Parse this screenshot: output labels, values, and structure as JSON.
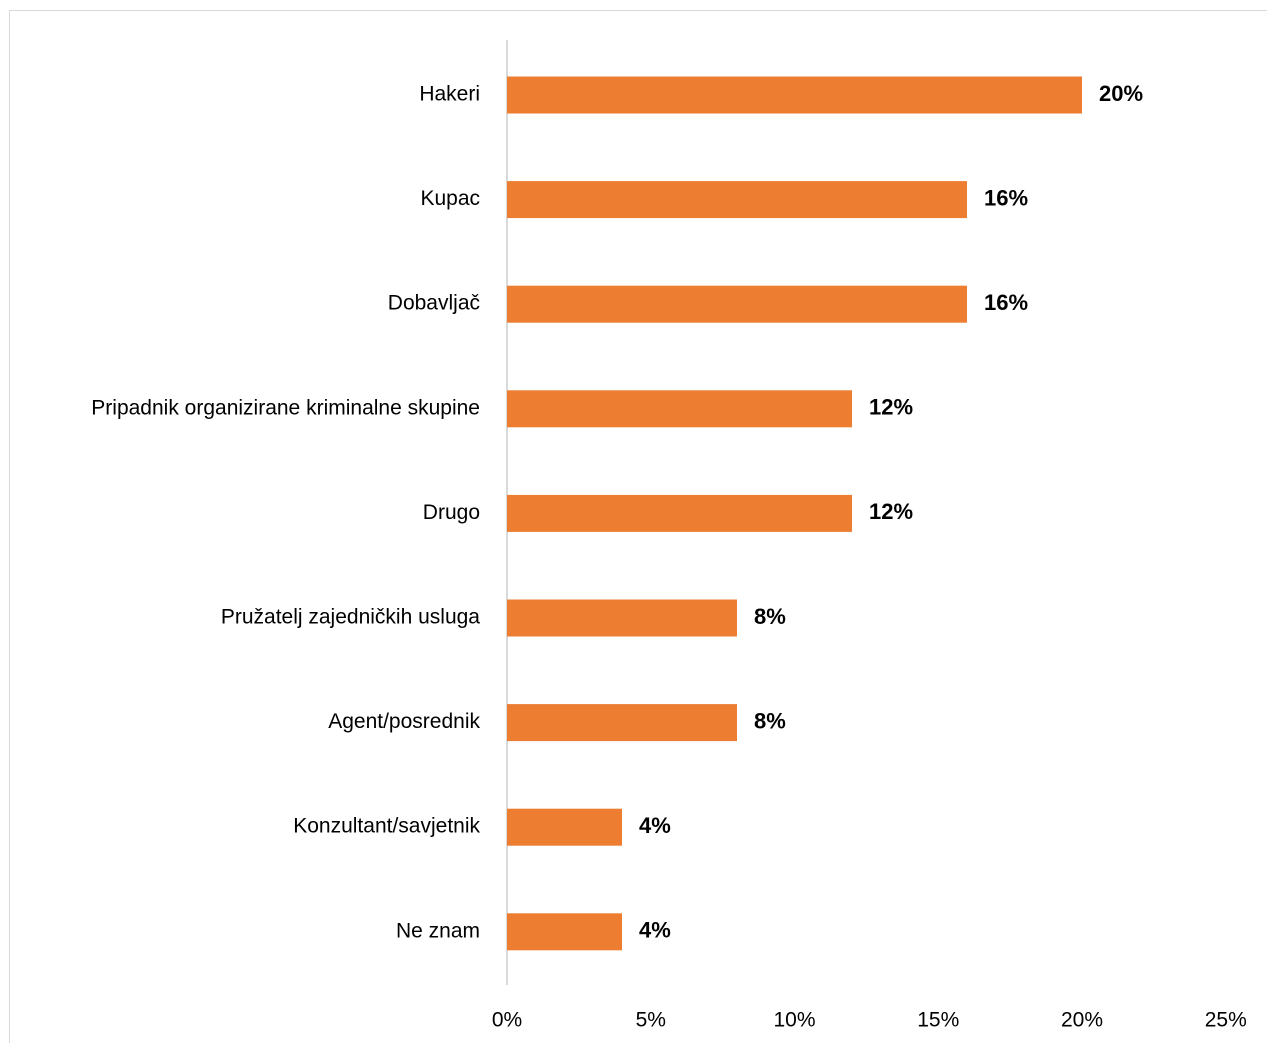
{
  "chart_data": {
    "type": "bar",
    "orientation": "horizontal",
    "categories": [
      "Hakeri",
      "Kupac",
      "Dobavljač",
      "Pripadnik organizirane kriminalne skupine",
      "Drugo",
      "Pružatelj zajedničkih usluga",
      "Agent/posrednik",
      "Konzultant/savjetnik",
      "Ne znam"
    ],
    "values": [
      20,
      16,
      16,
      12,
      12,
      8,
      8,
      4,
      4
    ],
    "value_labels": [
      "20%",
      "16%",
      "16%",
      "12%",
      "12%",
      "8%",
      "8%",
      "4%",
      "4%"
    ],
    "x_ticks": [
      "0%",
      "5%",
      "10%",
      "15%",
      "20%",
      "25%"
    ],
    "xlim": [
      0,
      25
    ],
    "bar_color": "#ed7d31",
    "axis_color": "#d9d9d9",
    "grid": false,
    "legend": false
  }
}
